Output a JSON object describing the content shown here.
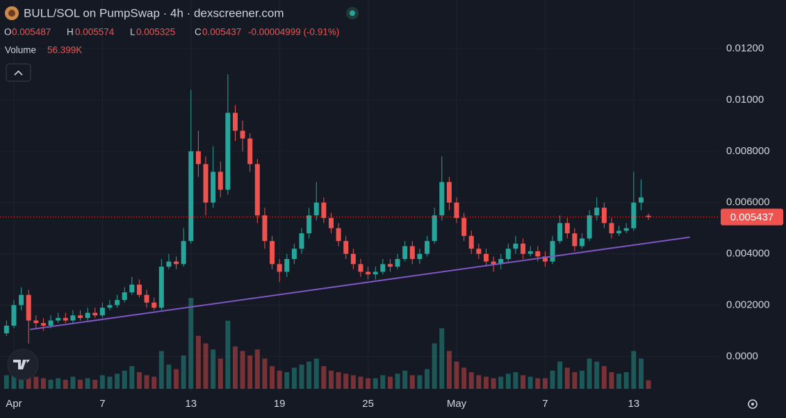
{
  "chart_data": {
    "type": "candlestick",
    "title": "BULL/SOL on PumpSwap · 4h · dexscreener.com",
    "legend": {
      "labels": [
        "O",
        "H",
        "L",
        "C"
      ],
      "change": "-0.00004999 (-0.91%)"
    },
    "volume_label": {
      "name": "Volume",
      "value_label": "56.399K"
    },
    "x": [
      0.5,
      1,
      1.5,
      2,
      2.5,
      3,
      3.5,
      4,
      4.5,
      5,
      5.5,
      6,
      6.5,
      7,
      7.5,
      8,
      8.5,
      9,
      9.5,
      10,
      10.5,
      11,
      11.5,
      12,
      12.5,
      13,
      13.5,
      14,
      14.5,
      15,
      15.5,
      16,
      16.5,
      17,
      17.5,
      18,
      18.5,
      19,
      19.5,
      20,
      20.5,
      21,
      21.5,
      22,
      22.5,
      23,
      23.5,
      24,
      24.5,
      25,
      25.5,
      26,
      26.5,
      27,
      27.5,
      28,
      28.5,
      29,
      29.5,
      30,
      30.5,
      31,
      31.5,
      32,
      32.5,
      33,
      33.5,
      34,
      34.5,
      35,
      35.5,
      36,
      36.5,
      37,
      37.5,
      38,
      38.5,
      39,
      39.5,
      40,
      40.5,
      41,
      41.5,
      42,
      42.5,
      43,
      43.5,
      44
    ],
    "open": [
      0.0009,
      0.0012,
      0.002,
      0.0024,
      0.0014,
      0.0013,
      0.0012,
      0.0014,
      0.0015,
      0.0014,
      0.0016,
      0.0015,
      0.0017,
      0.0016,
      0.0019,
      0.002,
      0.0022,
      0.0025,
      0.0028,
      0.0024,
      0.0021,
      0.0019,
      0.0035,
      0.0037,
      0.0036,
      0.0045,
      0.008,
      0.0075,
      0.006,
      0.0072,
      0.0065,
      0.0095,
      0.0088,
      0.0085,
      0.0075,
      0.0055,
      0.0045,
      0.0036,
      0.0033,
      0.0038,
      0.0042,
      0.0048,
      0.0055,
      0.006,
      0.0054,
      0.005,
      0.0045,
      0.004,
      0.0036,
      0.0033,
      0.0032,
      0.0033,
      0.0036,
      0.0035,
      0.0038,
      0.0043,
      0.0038,
      0.004,
      0.0045,
      0.0055,
      0.0068,
      0.006,
      0.0054,
      0.0047,
      0.0042,
      0.004,
      0.0037,
      0.0036,
      0.0038,
      0.0042,
      0.0044,
      0.004,
      0.0041,
      0.0039,
      0.0037,
      0.0045,
      0.0052,
      0.0048,
      0.0043,
      0.0046,
      0.0055,
      0.0058,
      0.0052,
      0.0048,
      0.0049,
      0.005,
      0.006,
      0.005487
    ],
    "high": [
      0.0014,
      0.0022,
      0.0027,
      0.0026,
      0.0016,
      0.0015,
      0.0016,
      0.0017,
      0.0017,
      0.0018,
      0.0018,
      0.0019,
      0.0019,
      0.0021,
      0.0022,
      0.0024,
      0.0027,
      0.0031,
      0.003,
      0.0026,
      0.0023,
      0.0038,
      0.004,
      0.0039,
      0.005,
      0.0104,
      0.0088,
      0.0078,
      0.0082,
      0.0076,
      0.011,
      0.0098,
      0.0092,
      0.0087,
      0.0077,
      0.0058,
      0.0047,
      0.0038,
      0.004,
      0.0044,
      0.005,
      0.0058,
      0.0068,
      0.0062,
      0.0056,
      0.0052,
      0.0047,
      0.0042,
      0.0038,
      0.0035,
      0.0035,
      0.0038,
      0.0038,
      0.004,
      0.0045,
      0.0045,
      0.0042,
      0.0047,
      0.0058,
      0.0078,
      0.007,
      0.0062,
      0.0056,
      0.0049,
      0.0044,
      0.0042,
      0.0039,
      0.004,
      0.0044,
      0.0047,
      0.0046,
      0.0043,
      0.0043,
      0.0041,
      0.0047,
      0.0055,
      0.0054,
      0.005,
      0.0048,
      0.0057,
      0.0062,
      0.006,
      0.0054,
      0.0051,
      0.0052,
      0.0072,
      0.0069,
      0.005574
    ],
    "low": [
      0.0008,
      0.0011,
      0.0018,
      0.0005,
      0.0011,
      0.001,
      0.0011,
      0.0013,
      0.0013,
      0.0013,
      0.0014,
      0.0014,
      0.0015,
      0.0015,
      0.0018,
      0.0019,
      0.0021,
      0.0024,
      0.0023,
      0.0019,
      0.0018,
      0.0018,
      0.0034,
      0.0034,
      0.0035,
      0.0044,
      0.007,
      0.0055,
      0.0058,
      0.0062,
      0.0063,
      0.0084,
      0.008,
      0.0072,
      0.0052,
      0.0042,
      0.0034,
      0.0029,
      0.0031,
      0.0036,
      0.004,
      0.0046,
      0.0053,
      0.0052,
      0.0048,
      0.0043,
      0.0038,
      0.0034,
      0.0031,
      0.003,
      0.003,
      0.0032,
      0.0033,
      0.0034,
      0.0037,
      0.0036,
      0.0036,
      0.0039,
      0.0044,
      0.0053,
      0.0057,
      0.0052,
      0.0045,
      0.004,
      0.0038,
      0.0035,
      0.0033,
      0.0034,
      0.0037,
      0.004,
      0.0038,
      0.0039,
      0.0037,
      0.0035,
      0.0036,
      0.0044,
      0.0046,
      0.0041,
      0.0042,
      0.0045,
      0.0053,
      0.005,
      0.0046,
      0.0047,
      0.0048,
      0.0049,
      0.0057,
      0.005325
    ],
    "close": [
      0.0012,
      0.002,
      0.0024,
      0.0014,
      0.0013,
      0.0012,
      0.0014,
      0.0015,
      0.0014,
      0.0016,
      0.0015,
      0.0017,
      0.0016,
      0.0019,
      0.002,
      0.0022,
      0.0025,
      0.0028,
      0.0024,
      0.0021,
      0.0019,
      0.0035,
      0.0037,
      0.0036,
      0.0045,
      0.008,
      0.0075,
      0.006,
      0.0072,
      0.0065,
      0.0095,
      0.0088,
      0.0085,
      0.0075,
      0.0055,
      0.0045,
      0.0036,
      0.0033,
      0.0038,
      0.0042,
      0.0048,
      0.0055,
      0.006,
      0.0054,
      0.005,
      0.0045,
      0.004,
      0.0036,
      0.0033,
      0.0032,
      0.0033,
      0.0036,
      0.0035,
      0.0038,
      0.0043,
      0.0038,
      0.004,
      0.0045,
      0.0055,
      0.0068,
      0.006,
      0.0054,
      0.0047,
      0.0042,
      0.004,
      0.0037,
      0.0036,
      0.0038,
      0.0042,
      0.0044,
      0.004,
      0.0041,
      0.0039,
      0.0037,
      0.0045,
      0.0052,
      0.0048,
      0.0043,
      0.0046,
      0.0055,
      0.0058,
      0.0052,
      0.0048,
      0.0049,
      0.005,
      0.006,
      0.0062,
      0.005437
    ],
    "volume": [
      90000,
      160000,
      150000,
      120000,
      80000,
      70000,
      60000,
      70000,
      60000,
      80000,
      60000,
      70000,
      60000,
      90000,
      80000,
      100000,
      120000,
      150000,
      110000,
      90000,
      80000,
      250000,
      160000,
      130000,
      220000,
      600000,
      350000,
      300000,
      260000,
      200000,
      450000,
      280000,
      250000,
      220000,
      260000,
      200000,
      150000,
      120000,
      110000,
      140000,
      160000,
      180000,
      200000,
      150000,
      120000,
      110000,
      100000,
      90000,
      80000,
      70000,
      70000,
      90000,
      80000,
      100000,
      120000,
      90000,
      90000,
      130000,
      300000,
      400000,
      250000,
      180000,
      140000,
      110000,
      90000,
      80000,
      70000,
      80000,
      100000,
      110000,
      90000,
      80000,
      70000,
      70000,
      120000,
      180000,
      140000,
      110000,
      120000,
      200000,
      180000,
      150000,
      110000,
      100000,
      110000,
      250000,
      200000,
      56399
    ],
    "up_color": "#26a69a",
    "down_color": "#ef5350",
    "xlim": [
      0.06,
      48.8
    ],
    "ylim": [
      -0.0014,
      0.0139
    ],
    "vlim": [
      0,
      1100000
    ],
    "xticks": [
      {
        "value": 1,
        "label": "Apr"
      },
      7,
      13,
      19,
      25,
      {
        "value": 31,
        "label": "May"
      },
      {
        "value": 37,
        "label": "7"
      },
      {
        "value": 43,
        "label": "13"
      }
    ],
    "yticks": [
      {
        "value": 0,
        "label": "0.0000"
      },
      {
        "value": 0.002,
        "label": "0.002000"
      },
      {
        "value": 0.004,
        "label": "0.004000"
      },
      {
        "value": 0.006,
        "label": "0.006000"
      },
      {
        "value": 0.008,
        "label": "0.008000"
      },
      {
        "value": 0.01,
        "label": "0.01000"
      },
      {
        "value": 0.012,
        "label": "0.01200"
      }
    ],
    "trendline": {
      "x": [
        2.1,
        46.8
      ],
      "y": [
        0.00105,
        0.00465
      ],
      "color": "#7e57c2"
    },
    "grid": true
  }
}
